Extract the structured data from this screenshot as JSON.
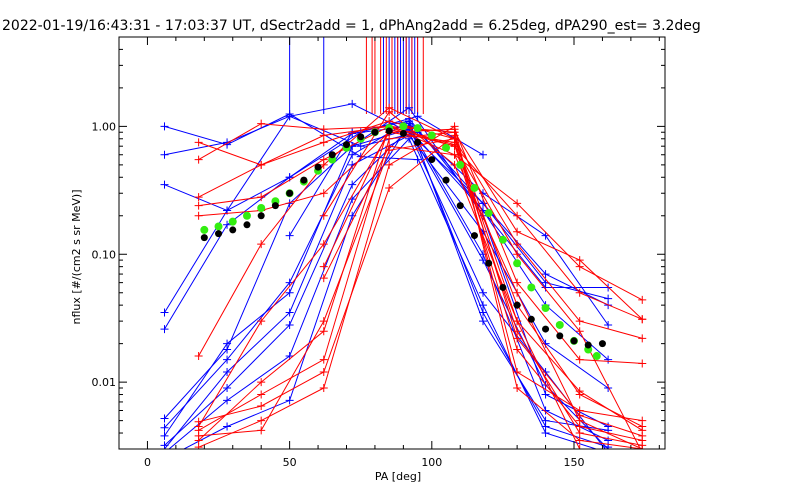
{
  "chart_data": {
    "type": "line",
    "title": "2022-01-19/16:43:31 - 17:03:37 UT, dSectr2add = 1, dPhAng2add = 6.25deg, dPA290_est=   3.2deg",
    "xlabel": "PA [deg]",
    "ylabel": "nflux [#/(cm2 s sr MeV)]",
    "xlim": [
      -10,
      182
    ],
    "ylim": [
      0.003,
      5.0
    ],
    "yscale": "log",
    "x_ticks": [
      0,
      50,
      100,
      150
    ],
    "x_tick_labels": [
      "0",
      "50",
      "100",
      "150"
    ],
    "y_ticks": [
      0.01,
      0.1,
      1.0
    ],
    "y_tick_labels": [
      "0.01",
      "0.10",
      "1.00"
    ],
    "grid": false,
    "colors": {
      "blue": "#0000ff",
      "red": "#ff0000",
      "green": "#33ee11",
      "black": "#000000"
    },
    "series": [
      {
        "color": "blue",
        "marker": "plus",
        "x": [
          6,
          28,
          50,
          75,
          95
        ],
        "y": [
          1.0,
          0.72,
          1.25,
          0.58,
          0.55
        ]
      },
      {
        "color": "blue",
        "marker": "plus",
        "x": [
          6,
          28,
          50,
          75,
          95
        ],
        "y": [
          0.6,
          0.75,
          1.2,
          0.7,
          0.9
        ]
      },
      {
        "color": "blue",
        "marker": "plus",
        "x": [
          6,
          28,
          50,
          75,
          95,
          118
        ],
        "y": [
          0.35,
          0.22,
          0.4,
          0.9,
          1.2,
          0.6
        ]
      },
      {
        "color": "blue",
        "marker": "plus",
        "x": [
          6,
          28,
          50,
          72,
          92,
          118,
          140,
          162
        ],
        "y": [
          0.035,
          0.22,
          1.2,
          1.5,
          0.9,
          0.05,
          0.012,
          0.0028
        ]
      },
      {
        "color": "blue",
        "marker": "plus",
        "x": [
          6,
          28,
          50,
          72,
          92,
          118,
          140,
          162
        ],
        "y": [
          0.026,
          0.17,
          0.4,
          0.88,
          1.0,
          0.1,
          0.006,
          0.0035
        ]
      },
      {
        "color": "blue",
        "marker": "plus",
        "x": [
          6,
          28,
          50,
          72,
          92,
          118,
          140,
          162
        ],
        "y": [
          0.0052,
          0.018,
          0.25,
          0.7,
          1.4,
          0.2,
          0.008,
          0.0045
        ]
      },
      {
        "color": "blue",
        "marker": "plus",
        "x": [
          6,
          28,
          50,
          72,
          92,
          118,
          140,
          162
        ],
        "y": [
          0.0044,
          0.015,
          0.06,
          0.6,
          1.1,
          0.03,
          0.005,
          0.0042
        ]
      },
      {
        "color": "blue",
        "marker": "plus",
        "x": [
          6,
          28,
          50,
          72,
          92,
          118,
          140,
          162
        ],
        "y": [
          0.0032,
          0.009,
          0.028,
          0.35,
          0.95,
          0.09,
          0.0095,
          0.003
        ]
      },
      {
        "color": "blue",
        "marker": "plus",
        "x": [
          6,
          28,
          50,
          72,
          92,
          118,
          140,
          162
        ],
        "y": [
          0.0028,
          0.0072,
          0.016,
          0.27,
          0.8,
          0.04,
          0.004,
          0.0028
        ]
      },
      {
        "color": "blue",
        "marker": "plus",
        "x": [
          6,
          28,
          50,
          72,
          92,
          118,
          140,
          162
        ],
        "y": [
          0.0025,
          0.0045,
          0.0072,
          0.2,
          1.05,
          0.035,
          0.0045,
          0.0031
        ]
      },
      {
        "color": "blue",
        "marker": "plus",
        "x": [
          6,
          28,
          50,
          72,
          92,
          118,
          140,
          162
        ],
        "y": [
          0.003,
          0.012,
          0.035,
          0.5,
          0.85,
          0.15,
          0.02,
          0.009
        ]
      },
      {
        "color": "blue",
        "marker": "plus",
        "x": [
          6,
          28,
          50,
          72,
          92,
          118,
          140,
          162
        ],
        "y": [
          0.0038,
          0.02,
          0.05,
          0.7,
          0.95,
          0.22,
          0.04,
          0.015
        ]
      },
      {
        "color": "blue",
        "marker": "plus",
        "x": [
          50,
          72,
          92,
          118,
          140,
          162
        ],
        "y": [
          0.14,
          0.9,
          1.1,
          0.25,
          0.06,
          0.045
        ]
      },
      {
        "color": "blue",
        "marker": "plus",
        "x": [
          92,
          118,
          140,
          162
        ],
        "y": [
          1.15,
          0.22,
          0.055,
          0.055
        ]
      },
      {
        "color": "blue",
        "marker": "plus",
        "x": [
          92,
          118,
          140,
          162
        ],
        "y": [
          0.9,
          0.25,
          0.07,
          0.04
        ]
      },
      {
        "color": "blue",
        "marker": "plus",
        "x": [
          92,
          118,
          140,
          162
        ],
        "y": [
          1.05,
          0.3,
          0.14,
          0.028
        ]
      },
      {
        "color": "red",
        "marker": "plus",
        "x": [
          18,
          40,
          62,
          85,
          108,
          130,
          152,
          174
        ],
        "y": [
          0.75,
          0.5,
          0.85,
          1.0,
          0.6,
          0.25,
          0.08,
          0.044
        ]
      },
      {
        "color": "red",
        "marker": "plus",
        "x": [
          18,
          40,
          62,
          85,
          108,
          130,
          152,
          174
        ],
        "y": [
          0.55,
          1.05,
          0.95,
          1.0,
          0.7,
          0.2,
          0.05,
          0.031
        ]
      },
      {
        "color": "red",
        "marker": "plus",
        "x": [
          18,
          40,
          62,
          85,
          108,
          130,
          152,
          174
        ],
        "y": [
          0.28,
          0.5,
          0.75,
          1.1,
          0.8,
          0.12,
          0.03,
          0.022
        ]
      },
      {
        "color": "red",
        "marker": "plus",
        "x": [
          18,
          40,
          62,
          85,
          108,
          130,
          152,
          174
        ],
        "y": [
          0.24,
          0.28,
          0.55,
          1.0,
          0.9,
          0.15,
          0.09,
          0.031
        ]
      },
      {
        "color": "red",
        "marker": "plus",
        "x": [
          18,
          40,
          62,
          85,
          108,
          130,
          152,
          174
        ],
        "y": [
          0.2,
          0.22,
          0.3,
          0.9,
          0.95,
          0.06,
          0.015,
          0.014
        ]
      },
      {
        "color": "red",
        "marker": "plus",
        "x": [
          18,
          40,
          62,
          85,
          108,
          130,
          152,
          174
        ],
        "y": [
          0.016,
          0.12,
          0.5,
          1.4,
          0.8,
          0.04,
          0.008,
          0.0045
        ]
      },
      {
        "color": "red",
        "marker": "plus",
        "x": [
          18,
          40,
          62,
          85,
          108,
          130,
          152,
          174
        ],
        "y": [
          0.0045,
          0.03,
          0.12,
          0.9,
          0.75,
          0.025,
          0.004,
          0.0032
        ]
      },
      {
        "color": "red",
        "marker": "plus",
        "x": [
          18,
          40,
          62,
          85,
          108,
          130,
          152,
          174
        ],
        "y": [
          0.0035,
          0.01,
          0.025,
          1.0,
          0.72,
          0.018,
          0.0045,
          0.0035
        ]
      },
      {
        "color": "red",
        "marker": "plus",
        "x": [
          18,
          40,
          62,
          85,
          108,
          130,
          152,
          174
        ],
        "y": [
          0.0042,
          0.008,
          0.015,
          0.8,
          0.9,
          0.012,
          0.006,
          0.005
        ]
      },
      {
        "color": "red",
        "marker": "plus",
        "x": [
          18,
          40,
          62,
          85,
          108,
          130,
          152,
          174
        ],
        "y": [
          0.0031,
          0.005,
          0.009,
          0.5,
          1.0,
          0.009,
          0.0035,
          0.003
        ]
      },
      {
        "color": "red",
        "marker": "plus",
        "x": [
          18,
          40,
          62,
          85,
          108,
          130,
          152,
          174
        ],
        "y": [
          0.0049,
          0.0065,
          0.012,
          0.33,
          0.85,
          0.022,
          0.0055,
          0.0038
        ]
      },
      {
        "color": "red",
        "marker": "plus",
        "x": [
          18,
          40,
          62,
          85,
          108,
          130,
          152,
          174
        ],
        "y": [
          0.0038,
          0.0042,
          0.03,
          0.65,
          0.8,
          0.03,
          0.0085,
          0.0042
        ]
      },
      {
        "color": "red",
        "marker": "plus",
        "x": [
          62,
          85,
          108,
          130,
          152,
          174
        ],
        "y": [
          0.08,
          0.95,
          0.7,
          0.1,
          0.025,
          0.0028
        ]
      },
      {
        "color": "red",
        "marker": "plus",
        "x": [
          62,
          85,
          108,
          130,
          152,
          174
        ],
        "y": [
          0.065,
          0.7,
          0.6,
          0.05,
          0.005,
          0.003
        ]
      },
      {
        "color": "red",
        "marker": "plus",
        "x": [
          62,
          85,
          108,
          130,
          152,
          174
        ],
        "y": [
          0.2,
          1.3,
          0.5,
          0.03,
          0.003,
          0.0028
        ]
      },
      {
        "color": "green",
        "marker": "dot",
        "x": [
          20,
          25,
          30,
          35,
          40,
          45,
          50,
          55,
          60,
          65,
          70,
          75,
          80,
          85,
          90,
          95,
          100,
          105,
          110,
          115,
          120,
          125,
          130,
          135,
          140,
          145,
          150,
          155,
          158
        ],
        "y": [
          0.155,
          0.165,
          0.18,
          0.2,
          0.23,
          0.26,
          0.3,
          0.37,
          0.45,
          0.55,
          0.68,
          0.8,
          0.9,
          0.97,
          1.0,
          0.97,
          0.85,
          0.68,
          0.5,
          0.33,
          0.21,
          0.13,
          0.085,
          0.055,
          0.038,
          0.028,
          0.021,
          0.018,
          0.016
        ]
      },
      {
        "color": "black",
        "marker": "dot",
        "x": [
          20,
          25,
          30,
          35,
          40,
          45,
          50,
          55,
          60,
          65,
          70,
          75,
          80,
          85,
          90,
          95,
          100,
          105,
          110,
          115,
          120,
          125,
          130,
          135,
          140,
          145,
          150,
          155,
          160
        ],
        "y": [
          0.135,
          0.145,
          0.155,
          0.17,
          0.2,
          0.24,
          0.3,
          0.38,
          0.48,
          0.6,
          0.72,
          0.83,
          0.9,
          0.92,
          0.88,
          0.75,
          0.55,
          0.38,
          0.24,
          0.14,
          0.085,
          0.055,
          0.04,
          0.031,
          0.026,
          0.023,
          0.021,
          0.0195,
          0.02
        ]
      }
    ],
    "vertical_lines": [
      {
        "color": "blue",
        "x": [
          50,
          62,
          83,
          85,
          86,
          87,
          88,
          89,
          90,
          91,
          92,
          93,
          94,
          95
        ]
      },
      {
        "color": "red",
        "x": [
          77,
          79,
          80,
          82,
          84,
          86,
          88,
          91,
          93,
          95,
          97
        ]
      }
    ]
  }
}
